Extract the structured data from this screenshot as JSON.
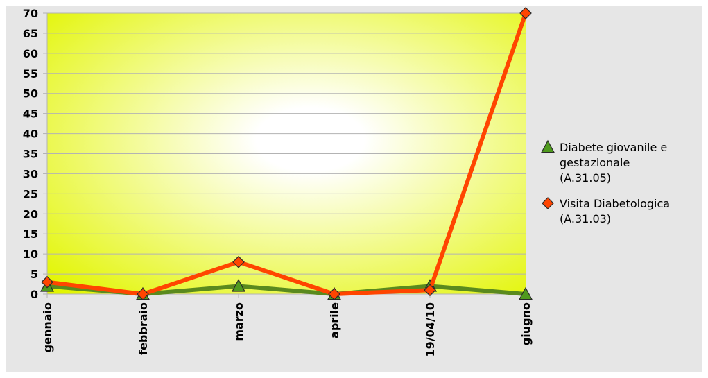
{
  "chart_data": {
    "type": "line",
    "categories": [
      "gennaio",
      "febbraio",
      "marzo",
      "aprile",
      "19/04/10",
      "giugno"
    ],
    "series": [
      {
        "name": "Diabete giovanile e gestazionale (A.31.05)",
        "name_lines": [
          "Diabete giovanile e",
          "gestazionale",
          "(A.31.05)"
        ],
        "values": [
          2,
          0,
          2,
          0,
          2,
          0
        ],
        "color": "#5a8a1e",
        "marker": "triangle",
        "marker_fill": "#4f9a1e"
      },
      {
        "name": "Visita Diabetologica (A.31.03)",
        "name_lines": [
          "Visita Diabetologica",
          "(A.31.03)"
        ],
        "values": [
          3,
          0,
          8,
          0,
          1,
          70
        ],
        "color": "#ff4500",
        "marker": "diamond",
        "marker_fill": "#ff4500"
      }
    ],
    "ylim": [
      0,
      70
    ],
    "ytick_step": 5,
    "grid": true,
    "legend_position": "right",
    "plot_background": [
      "#e2f500",
      "#ffffff"
    ],
    "title": "",
    "xlabel": "",
    "ylabel": ""
  }
}
